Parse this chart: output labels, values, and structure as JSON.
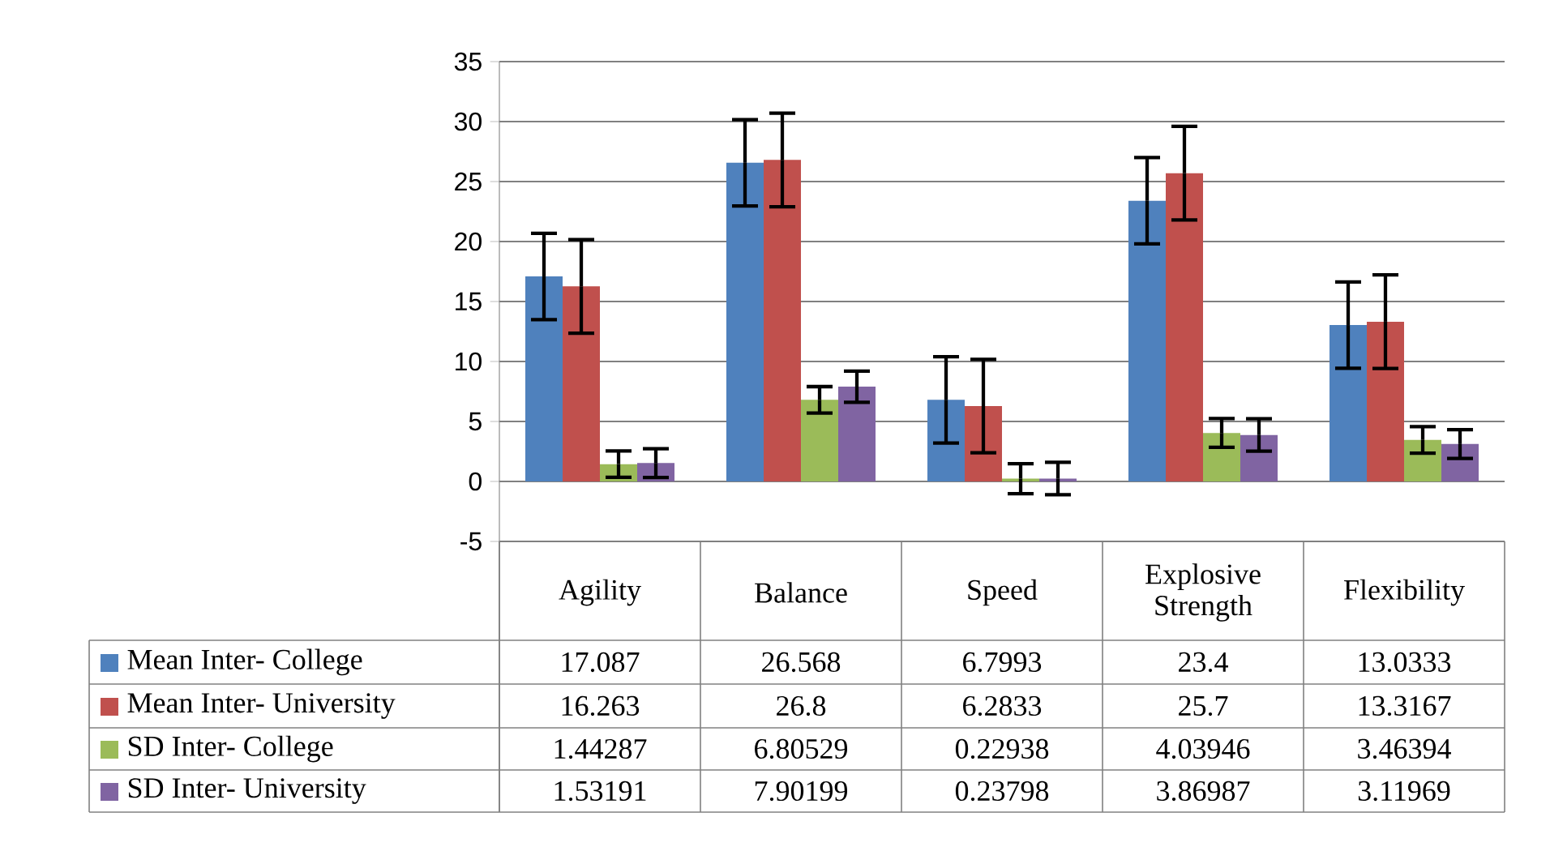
{
  "chart_data": {
    "type": "bar",
    "categories": [
      "Agility",
      "Balance",
      "Speed",
      "Explosive Strength",
      "Flexibility"
    ],
    "series": [
      {
        "name": "Mean Inter- College",
        "color": "#4f81bd",
        "values": [
          17.087,
          26.568,
          6.7993,
          23.4,
          13.0333
        ],
        "errors": [
          3.6,
          3.6,
          3.6,
          3.6,
          3.6
        ]
      },
      {
        "name": "Mean Inter- University",
        "color": "#c0504d",
        "values": [
          16.263,
          26.8,
          6.2833,
          25.7,
          13.3167
        ],
        "errors": [
          3.9,
          3.9,
          3.9,
          3.9,
          3.9
        ]
      },
      {
        "name": "SD Inter- College",
        "color": "#9bbb59",
        "values": [
          1.44287,
          6.80529,
          0.22938,
          4.03946,
          3.46394
        ],
        "errors": [
          1.1,
          1.1,
          1.25,
          1.2,
          1.1
        ]
      },
      {
        "name": "SD Inter- University",
        "color": "#8064a2",
        "values": [
          1.53191,
          7.90199,
          0.23798,
          3.86987,
          3.11969
        ],
        "errors": [
          1.2,
          1.3,
          1.35,
          1.35,
          1.2
        ]
      }
    ],
    "ylim": [
      -5,
      35
    ],
    "yticks": [
      -5,
      0,
      5,
      10,
      15,
      20,
      25,
      30,
      35
    ],
    "grid": "y",
    "data_labels": true,
    "legend": "bottom"
  }
}
